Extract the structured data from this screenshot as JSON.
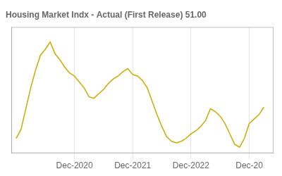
{
  "chart_data": {
    "type": "line",
    "title": "Housing Market Indx - Actual (First Release) 51.00",
    "x": [
      0,
      1,
      2,
      3,
      4,
      5,
      6,
      7,
      8,
      9,
      10,
      11,
      12,
      13,
      14,
      15,
      16,
      17,
      18,
      19,
      20,
      21,
      22,
      23,
      24,
      25,
      26,
      27,
      28,
      29,
      30,
      31,
      32,
      33,
      34,
      35,
      36,
      37,
      38,
      39,
      40,
      41,
      42,
      43,
      44,
      45,
      46,
      47,
      48,
      49,
      50,
      51
    ],
    "values": [
      30,
      36,
      50,
      64,
      76,
      86,
      90,
      95,
      87,
      83,
      78,
      74,
      72,
      68,
      64,
      58,
      57,
      60,
      63,
      67,
      70,
      72,
      75,
      77,
      73,
      72,
      69,
      64,
      55,
      46,
      38,
      31,
      28,
      27,
      28,
      30,
      33,
      35,
      38,
      42,
      50,
      48,
      45,
      40,
      33,
      26,
      24,
      30,
      40,
      43,
      46,
      51
    ],
    "color": "#ccaa00",
    "xlim": [
      -1,
      53
    ],
    "xticks": [
      {
        "value": 12,
        "label": "Dec-2020"
      },
      {
        "value": 24,
        "label": "Dec-2021"
      },
      {
        "value": 36,
        "label": "Dec-2022"
      },
      {
        "value": 48,
        "label": "Dec-20"
      }
    ],
    "ylim": [
      20,
      105
    ],
    "yticks": [],
    "grid": true,
    "tick_labels": "x"
  }
}
